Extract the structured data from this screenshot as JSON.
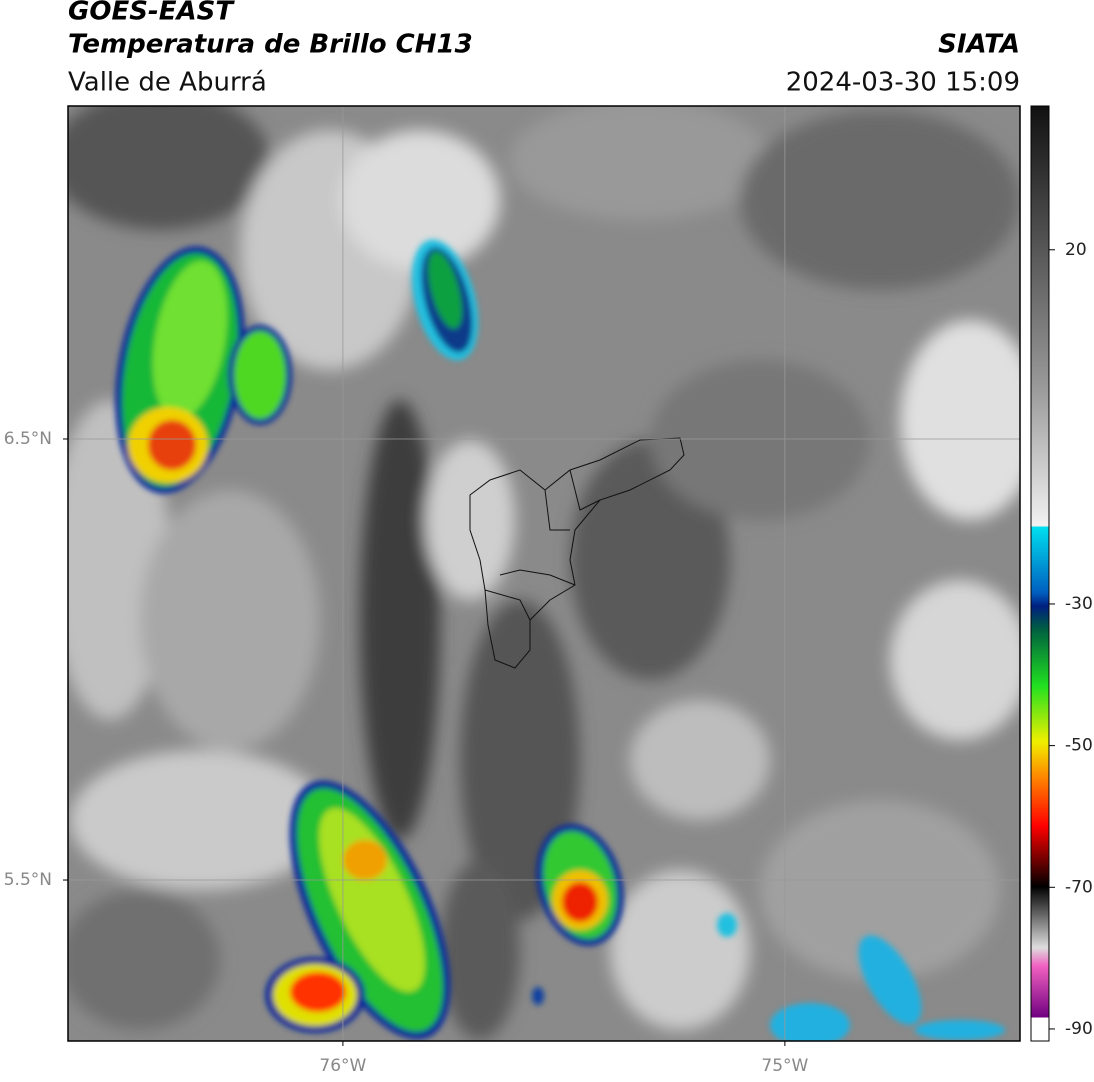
{
  "header": {
    "title": "GOES-EAST",
    "subtitle": "Temperatura de Brillo CH13",
    "region": "Valle de Aburrá",
    "source": "SIATA",
    "datetime": "2024-03-30 15:09"
  },
  "map": {
    "xlim": [
      -76.622,
      -74.468
    ],
    "ylim": [
      5.135,
      7.255
    ],
    "xticks": [
      {
        "value": -76,
        "label": "76°W"
      },
      {
        "value": -75,
        "label": "75°W"
      }
    ],
    "yticks": [
      {
        "value": 6.5,
        "label": "6.5°N"
      },
      {
        "value": 5.5,
        "label": "5.5°N"
      }
    ],
    "grid": true
  },
  "colorbar": {
    "lim": [
      -91.7,
      40.3
    ],
    "ticks": [
      20,
      -30,
      -50,
      -70,
      -90
    ]
  }
}
